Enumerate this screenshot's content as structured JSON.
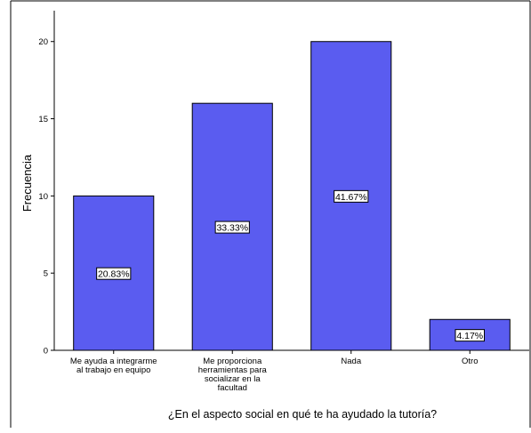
{
  "chart_data": {
    "type": "bar",
    "categories": [
      [
        "Me ayuda a integrarme",
        "al trabajo en equipo"
      ],
      [
        "Me proporciona",
        "herramientas para",
        "socializar en la",
        "facultad"
      ],
      [
        "Nada"
      ],
      [
        "Otro"
      ]
    ],
    "values": [
      10,
      16,
      20,
      2
    ],
    "data_labels": [
      "20.83%",
      "33.33%",
      "41.67%",
      "4.17%"
    ],
    "xlabel": "¿En el aspecto social en qué te ha ayudado la tutoría?",
    "ylabel": "Frecuencia",
    "ylim": [
      0,
      22
    ],
    "yticks": [
      0,
      5,
      10,
      15,
      20
    ],
    "grid": false,
    "colors": {
      "bar_fill": "#5A5CF0",
      "bar_stroke": "#000000",
      "axis": "#000000",
      "label_box": "#ffffff"
    }
  }
}
